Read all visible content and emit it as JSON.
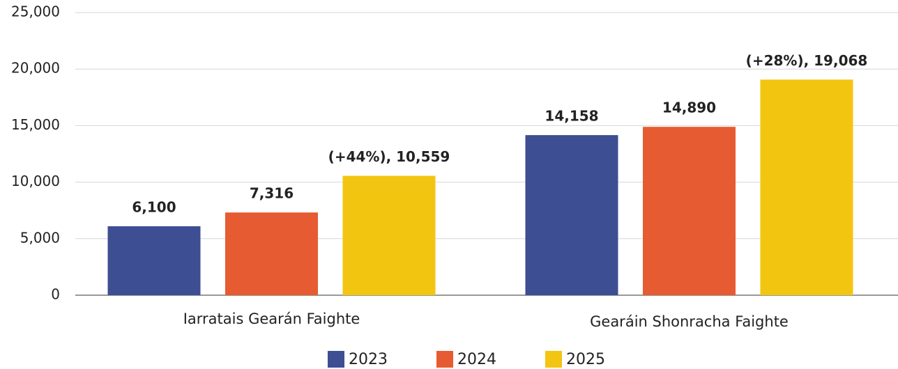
{
  "chart_data": {
    "type": "bar",
    "categories": [
      "Iarratais Gearán Faighte",
      "Gearáin Shonracha Faighte"
    ],
    "series": [
      {
        "name": "2023",
        "color": "#3d4e93",
        "values": [
          6100,
          14158
        ],
        "value_labels": [
          "6,100",
          "14,158"
        ]
      },
      {
        "name": "2024",
        "color": "#e65b31",
        "values": [
          7316,
          14890
        ],
        "value_labels": [
          "7,316",
          "14,890"
        ]
      },
      {
        "name": "2025",
        "color": "#f2c511",
        "values": [
          10559,
          19068
        ],
        "value_labels": [
          "(+44%), 10,559",
          "(+28%), 19,068"
        ]
      }
    ],
    "ylim": [
      0,
      25000
    ],
    "yticks": [
      0,
      {
        "value": 5000,
        "label": "5,000"
      },
      {
        "value": 10000,
        "label": "10,000"
      },
      {
        "value": 15000,
        "label": "15,000"
      },
      {
        "value": 20000,
        "label": "20,000"
      },
      {
        "value": 25000,
        "label": "25,000"
      }
    ],
    "grid": true,
    "legend": "bottom"
  }
}
